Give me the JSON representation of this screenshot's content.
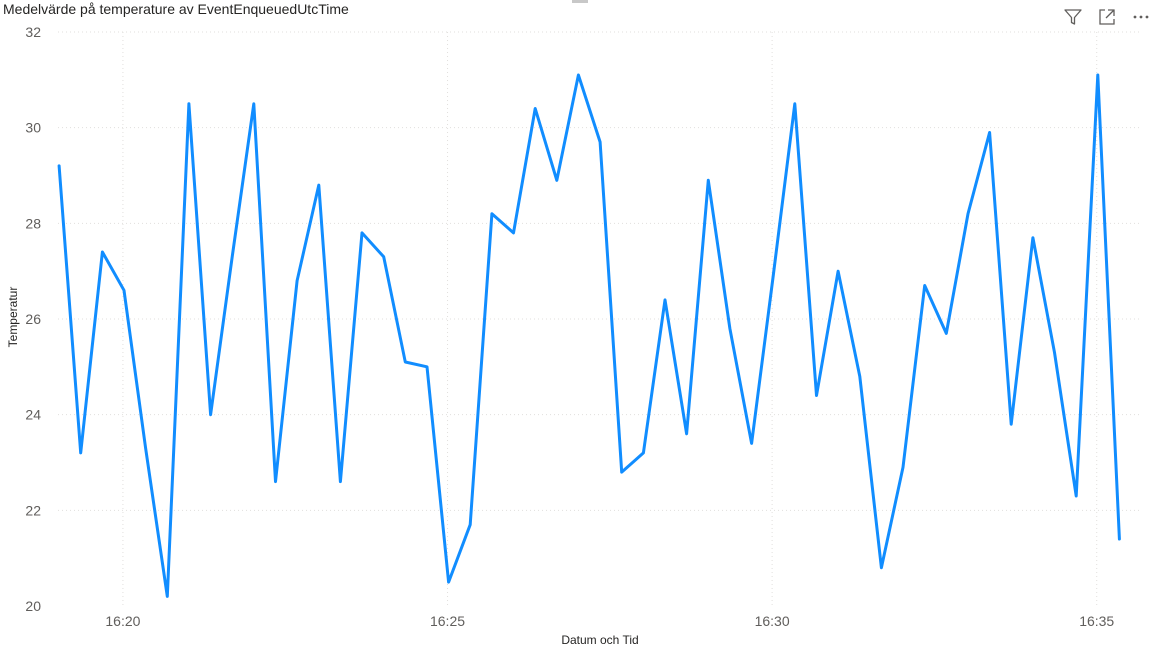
{
  "header": {
    "title": "Medelvärde på temperature av EventEnqueuedUtcTime",
    "icons": [
      "filter-icon",
      "focus-mode-icon",
      "more-options-icon"
    ]
  },
  "chart_data": {
    "type": "line",
    "title": "Medelvärde på temperature av EventEnqueuedUtcTime",
    "xlabel": "Datum och Tid",
    "ylabel": "Temperatur",
    "x_unit": "time (minutes)",
    "xlim": [
      "16:18:60",
      "16:35:40"
    ],
    "ylim": [
      20,
      32
    ],
    "y_ticks": [
      20,
      22,
      24,
      26,
      28,
      30,
      32
    ],
    "x_ticks": [
      "16:20",
      "16:25",
      "16:30",
      "16:35"
    ],
    "grid": true,
    "line_color": "#118DFF",
    "series": [
      {
        "name": "",
        "x": [
          "16:19:01",
          "16:19:21",
          "16:19:41",
          "16:20:01",
          "16:20:21",
          "16:20:41",
          "16:21:01",
          "16:21:21",
          "16:21:41",
          "16:22:01",
          "16:22:21",
          "16:22:41",
          "16:23:01",
          "16:23:21",
          "16:23:41",
          "16:24:01",
          "16:24:21",
          "16:24:41",
          "16:25:01",
          "16:25:21",
          "16:25:41",
          "16:26:01",
          "16:26:21",
          "16:26:41",
          "16:27:01",
          "16:27:21",
          "16:27:41",
          "16:28:01",
          "16:28:21",
          "16:28:41",
          "16:29:01",
          "16:29:21",
          "16:29:41",
          "16:30:01",
          "16:30:21",
          "16:30:41",
          "16:31:01",
          "16:31:21",
          "16:31:41",
          "16:32:01",
          "16:32:21",
          "16:32:41",
          "16:33:01",
          "16:33:21",
          "16:33:41",
          "16:34:01",
          "16:34:21",
          "16:34:41",
          "16:35:01",
          "16:35:21"
        ],
        "y": [
          29.2,
          23.2,
          27.4,
          26.6,
          23.3,
          20.2,
          30.5,
          24.0,
          27.3,
          30.5,
          22.6,
          26.8,
          28.8,
          22.6,
          27.8,
          27.3,
          25.1,
          25.0,
          20.5,
          21.7,
          28.2,
          27.8,
          30.4,
          28.9,
          31.1,
          29.7,
          22.8,
          23.2,
          26.4,
          23.6,
          28.9,
          25.8,
          23.4,
          26.9,
          30.5,
          24.4,
          27.0,
          24.8,
          20.8,
          22.9,
          26.7,
          25.7,
          28.2,
          29.9,
          23.8,
          27.7,
          25.3,
          22.3,
          31.1,
          21.4
        ]
      }
    ]
  }
}
